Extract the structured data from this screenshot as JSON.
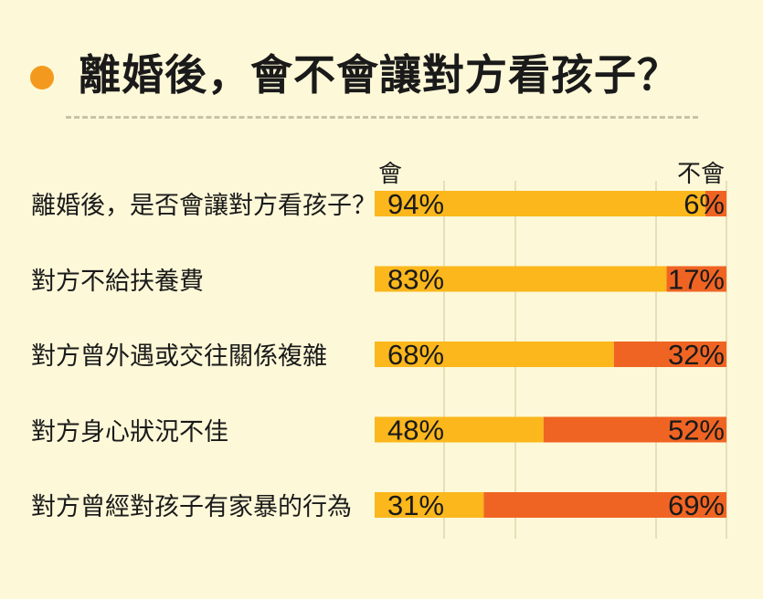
{
  "title": "離婚後，會不會讓對方看孩子？",
  "colors": {
    "background": "#fdf8d8",
    "yes": "#fbb71c",
    "no": "#f06423",
    "title_dot": "#f39a1e",
    "grid": "#e6dfb8"
  },
  "chart_data": {
    "type": "bar",
    "orientation": "horizontal",
    "stacked": true,
    "percent": true,
    "categories": [
      "離婚後，是否會讓對方看孩子？",
      "對方不給扶養費",
      "對方曾外遇或交往關係複雜",
      "對方身心狀況不佳",
      "對方曾經對孩子有家暴的行為"
    ],
    "series": [
      {
        "name": "會",
        "values": [
          94,
          83,
          68,
          48,
          31
        ],
        "labels": [
          "94%",
          "83%",
          "68%",
          "48%",
          "31%"
        ]
      },
      {
        "name": "不會",
        "values": [
          6,
          17,
          32,
          52,
          69
        ],
        "labels": [
          "6%",
          "17%",
          "32%",
          "52%",
          "69%"
        ]
      }
    ],
    "xlim": [
      0,
      100
    ],
    "grid": true,
    "legend_position": "top"
  }
}
